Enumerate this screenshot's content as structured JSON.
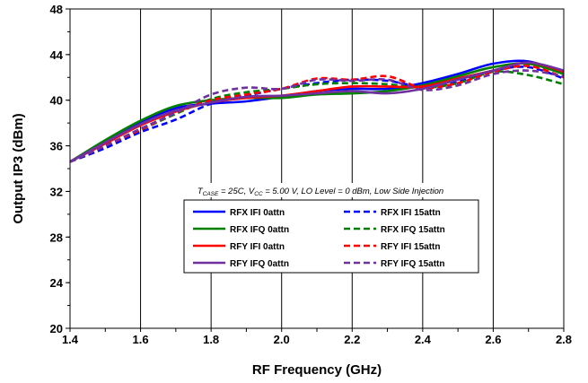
{
  "chart_data": {
    "type": "line",
    "title": "",
    "xlabel": "RF Frequency (GHz)",
    "ylabel": "Output IP3 (dBm)",
    "xlim": [
      1.4,
      2.8
    ],
    "ylim": [
      20,
      48
    ],
    "xticks": [
      "1.4",
      "1.6",
      "1.8",
      "2.0",
      "2.2",
      "2.4",
      "2.6",
      "2.8"
    ],
    "yticks": [
      "20",
      "24",
      "28",
      "32",
      "36",
      "40",
      "44",
      "48"
    ],
    "grid": "vertical",
    "legend_position": "center",
    "annotation": {
      "t_symbol": "T",
      "t_sub": "CASE",
      "t_value": " = 25C,  ",
      "v_symbol": "V",
      "v_sub": "CC",
      "v_value": " =  5.00 V,  LO Level = 0 dBm,  Low Side Injection"
    },
    "x": [
      1.4,
      1.5,
      1.6,
      1.7,
      1.8,
      1.9,
      2.0,
      2.1,
      2.2,
      2.3,
      2.4,
      2.5,
      2.6,
      2.7,
      2.8
    ],
    "series": [
      {
        "name": "RFX IFI 0attn",
        "color": "#0000ff",
        "dash": "solid",
        "values": [
          34.6,
          36.3,
          38.0,
          39.3,
          39.7,
          39.9,
          40.3,
          40.8,
          41.0,
          41.0,
          41.5,
          42.3,
          43.2,
          43.4,
          42.4
        ]
      },
      {
        "name": "RFX IFI 15attn",
        "color": "#0000ff",
        "dash": "dashed",
        "values": [
          34.6,
          35.8,
          37.2,
          38.3,
          39.7,
          40.4,
          41.0,
          41.5,
          41.8,
          41.7,
          41.2,
          41.6,
          42.6,
          42.9,
          41.9
        ]
      },
      {
        "name": "RFX IFQ 0attn",
        "color": "#008000",
        "dash": "solid",
        "values": [
          34.6,
          36.5,
          38.2,
          39.5,
          40.0,
          40.2,
          40.2,
          40.5,
          40.6,
          40.8,
          41.3,
          42.1,
          42.9,
          43.2,
          42.3
        ]
      },
      {
        "name": "RFX IFQ 15attn",
        "color": "#008000",
        "dash": "dashed",
        "values": [
          34.6,
          36.0,
          37.4,
          38.8,
          40.1,
          40.7,
          41.0,
          41.4,
          41.5,
          41.4,
          41.1,
          41.5,
          42.5,
          42.2,
          41.4
        ]
      },
      {
        "name": "RFY IFI 0attn",
        "color": "#ff0000",
        "dash": "solid",
        "values": [
          34.6,
          36.2,
          37.8,
          39.0,
          39.8,
          40.2,
          40.4,
          40.8,
          41.2,
          41.2,
          41.2,
          41.9,
          42.6,
          43.3,
          42.5
        ]
      },
      {
        "name": "RFY IFI 15attn",
        "color": "#ff0000",
        "dash": "dashed",
        "values": [
          34.6,
          36.0,
          37.4,
          38.9,
          40.0,
          40.5,
          41.0,
          41.9,
          41.8,
          42.1,
          41.1,
          41.5,
          42.5,
          43.0,
          42.0
        ]
      },
      {
        "name": "RFY IFQ 0attn",
        "color": "#7030a0",
        "dash": "solid",
        "values": [
          34.6,
          36.3,
          37.9,
          39.1,
          39.8,
          40.3,
          40.4,
          40.6,
          40.8,
          40.6,
          41.0,
          41.8,
          42.6,
          43.3,
          42.6
        ]
      },
      {
        "name": "RFY IFQ 15attn",
        "color": "#7030a0",
        "dash": "dashed",
        "values": [
          34.6,
          36.0,
          37.5,
          38.9,
          40.5,
          41.1,
          41.0,
          41.8,
          41.7,
          41.8,
          40.9,
          41.3,
          42.3,
          42.6,
          42.1
        ]
      }
    ]
  }
}
